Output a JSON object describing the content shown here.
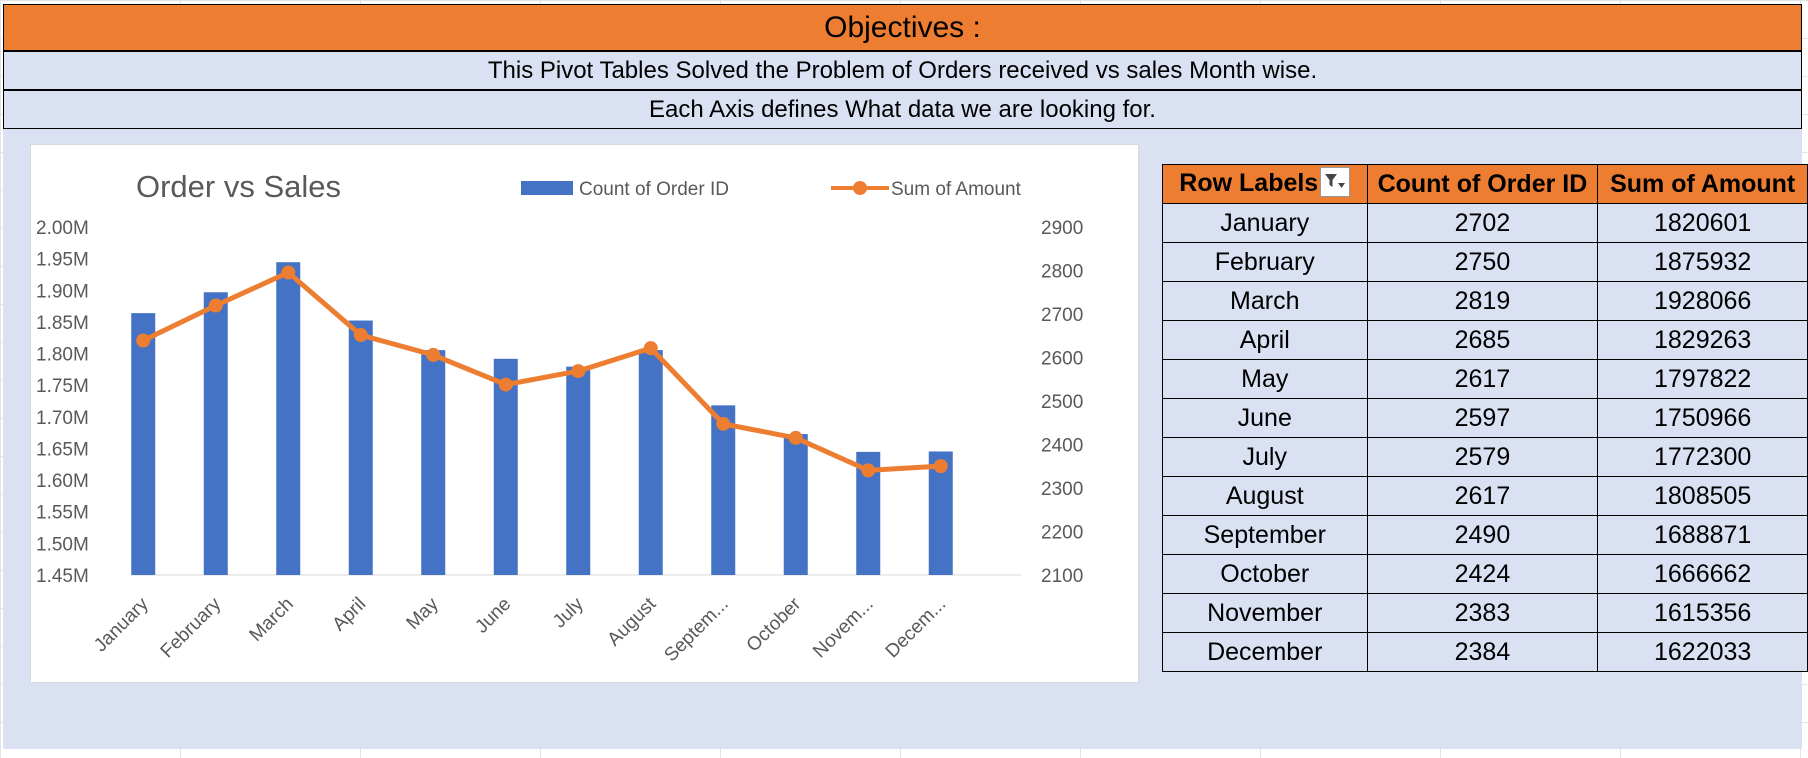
{
  "objectives_title": "Objectives :",
  "description_line1": "This Pivot Tables Solved the Problem of Orders received vs sales Month wise.",
  "description_line2": "Each Axis defines What data we are looking for.",
  "colors": {
    "orange": "#ED7D31",
    "light_blue": "#DAE1F2",
    "bar_blue": "#4472C4",
    "line_orange": "#ED7D31"
  },
  "pivot_table": {
    "headers": [
      "Row Labels",
      "Count of Order ID",
      "Sum of Amount"
    ],
    "filter_icon": "filter-dropdown-icon",
    "rows": [
      {
        "label": "January",
        "count": "2702",
        "sum": "1820601"
      },
      {
        "label": "February",
        "count": "2750",
        "sum": "1875932"
      },
      {
        "label": "March",
        "count": "2819",
        "sum": "1928066"
      },
      {
        "label": "April",
        "count": "2685",
        "sum": "1829263"
      },
      {
        "label": "May",
        "count": "2617",
        "sum": "1797822"
      },
      {
        "label": "June",
        "count": "2597",
        "sum": "1750966"
      },
      {
        "label": "July",
        "count": "2579",
        "sum": "1772300"
      },
      {
        "label": "August",
        "count": "2617",
        "sum": "1808505"
      },
      {
        "label": "September",
        "count": "2490",
        "sum": "1688871"
      },
      {
        "label": "October",
        "count": "2424",
        "sum": "1666662"
      },
      {
        "label": "November",
        "count": "2383",
        "sum": "1615356"
      },
      {
        "label": "December",
        "count": "2384",
        "sum": "1622033"
      }
    ]
  },
  "chart_data": {
    "type": "bar",
    "title": "Order vs Sales",
    "categories": [
      "January",
      "February",
      "March",
      "April",
      "May",
      "June",
      "July",
      "August",
      "Septem...",
      "October",
      "Novem...",
      "Decem..."
    ],
    "series": [
      {
        "name": "Count of Order ID",
        "type": "bar",
        "axis": "left",
        "values": [
          2702,
          2750,
          2819,
          2685,
          2617,
          2597,
          2579,
          2617,
          2490,
          2424,
          2383,
          2384
        ]
      },
      {
        "name": "Sum of Amount",
        "type": "line",
        "axis": "right",
        "values": [
          1820601,
          1875932,
          1928066,
          1829263,
          1797822,
          1750966,
          1772300,
          1808505,
          1688871,
          1666662,
          1615356,
          1622033
        ]
      }
    ],
    "left_axis": {
      "range": [
        1.45,
        2.0
      ],
      "ticks": [
        "2.00M",
        "1.95M",
        "1.90M",
        "1.85M",
        "1.80M",
        "1.75M",
        "1.70M",
        "1.65M",
        "1.60M",
        "1.55M",
        "1.50M",
        "1.45M"
      ]
    },
    "right_axis": {
      "range": [
        2100,
        2900
      ],
      "ticks": [
        "2900",
        "2800",
        "2700",
        "2600",
        "2500",
        "2400",
        "2300",
        "2200",
        "2100"
      ]
    },
    "bar_axis_range": [
      2100,
      2900
    ],
    "line_axis_range": [
      1450000,
      2000000
    ],
    "legend_position": "top",
    "grid": false
  }
}
